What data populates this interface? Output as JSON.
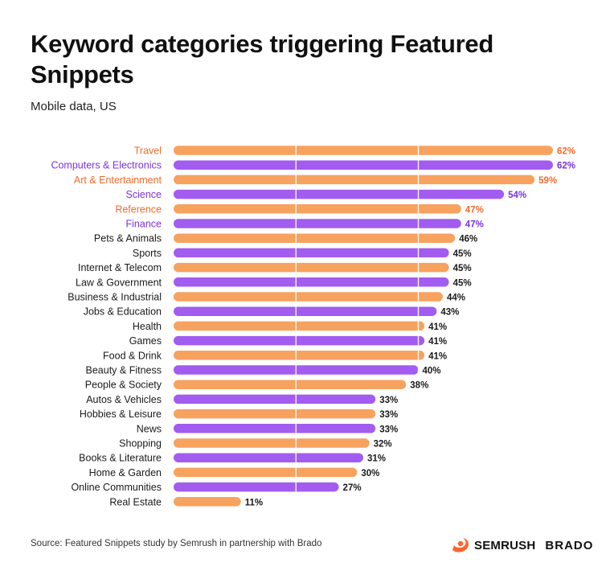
{
  "header": {
    "title": "Keyword categories triggering Featured Snippets",
    "subtitle": "Mobile data, US"
  },
  "footer": {
    "source": "Source: Featured Snippets study by Semrush in partnership with Brado",
    "logo_semrush": "SEMRUSH",
    "logo_brado": "BRADO"
  },
  "colors": {
    "orange": "#F7A25F",
    "purple": "#A25CF0",
    "orange_label": "#F26A2E",
    "purple_label": "#7A32E0",
    "default_label": "#1a1a1a",
    "value_text": "#1a1a1a"
  },
  "chart_data": {
    "type": "bar",
    "orientation": "horizontal",
    "value_suffix": "%",
    "xlim": [
      0,
      62
    ],
    "gridlines": [
      20,
      40
    ],
    "categories": [
      "Travel",
      "Computers & Electronics",
      "Art & Entertainment",
      "Science",
      "Reference",
      "Finance",
      "Pets & Animals",
      "Sports",
      "Internet & Telecom",
      "Law & Government",
      "Business & Industrial",
      "Jobs & Education",
      "Health",
      "Games",
      "Food & Drink",
      "Beauty & Fitness",
      "People & Society",
      "Autos & Vehicles",
      "Hobbies & Leisure",
      "News",
      "Shopping",
      "Books & Literature",
      "Home & Garden",
      "Online Communities",
      "Real Estate"
    ],
    "values": [
      62,
      62,
      59,
      54,
      47,
      47,
      46,
      45,
      45,
      45,
      44,
      43,
      41,
      41,
      41,
      40,
      38,
      33,
      33,
      33,
      32,
      31,
      30,
      27,
      11
    ],
    "bar_colors": [
      "orange",
      "purple",
      "orange",
      "purple",
      "orange",
      "purple",
      "orange",
      "purple",
      "orange",
      "purple",
      "orange",
      "purple",
      "orange",
      "purple",
      "orange",
      "purple",
      "orange",
      "purple",
      "orange",
      "purple",
      "orange",
      "purple",
      "orange",
      "purple",
      "orange"
    ],
    "highlighted": [
      true,
      true,
      true,
      true,
      true,
      true,
      false,
      false,
      false,
      false,
      false,
      false,
      false,
      false,
      false,
      false,
      false,
      false,
      false,
      false,
      false,
      false,
      false,
      false,
      false
    ]
  }
}
